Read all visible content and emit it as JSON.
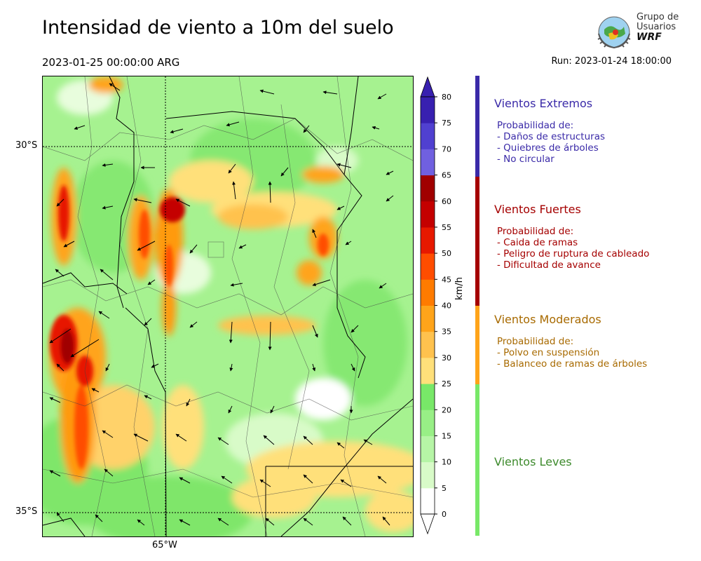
{
  "header": {
    "title": "Intensidad de viento a 10m del suelo",
    "valid_time": "2023-01-25 00:00:00 ARG",
    "run": "Run: 2023-01-24 18:00:00"
  },
  "logo": {
    "line1": "Grupo de",
    "line2": "Usuarios",
    "line3": "WRF"
  },
  "map": {
    "lat_labels": [
      "30°S",
      "35°S"
    ],
    "lon_labels": [
      "65°W"
    ]
  },
  "colorbar": {
    "unit": "km/h",
    "ticks": [
      "0",
      "5",
      "10",
      "15",
      "20",
      "25",
      "30",
      "35",
      "40",
      "45",
      "50",
      "55",
      "60",
      "65",
      "70",
      "75",
      "80"
    ],
    "colors": [
      "#ffffff",
      "#d8fbc8",
      "#b6f5a6",
      "#98ef86",
      "#78e868",
      "#ffe07a",
      "#ffc24e",
      "#ffa41a",
      "#ff7b00",
      "#ff4d00",
      "#e71900",
      "#c40000",
      "#a00000",
      "#7060e0",
      "#5040d0",
      "#3820b0"
    ]
  },
  "categories": [
    {
      "title": "Vientos Extremos",
      "color": "#3a2aa8",
      "desc_header": "Probabilidad de:",
      "items": [
        "- Daños de estructuras",
        "- Quiebres de árboles",
        "- No circular"
      ]
    },
    {
      "title": "Vientos Fuertes",
      "color": "#a50000",
      "desc_header": "Probabilidad de:",
      "items": [
        "- Caida de ramas",
        "- Peligro de ruptura de cableado",
        "- Dificultad de avance"
      ]
    },
    {
      "title": "Vientos Moderados",
      "color": "#a86a00",
      "desc_header": "Probabilidad de:",
      "items": [
        "- Polvo en suspensión",
        "- Balanceo de ramas de árboles"
      ]
    },
    {
      "title": "Vientos Leves",
      "color": "#3d8a2c",
      "desc_header": "",
      "items": []
    }
  ]
}
